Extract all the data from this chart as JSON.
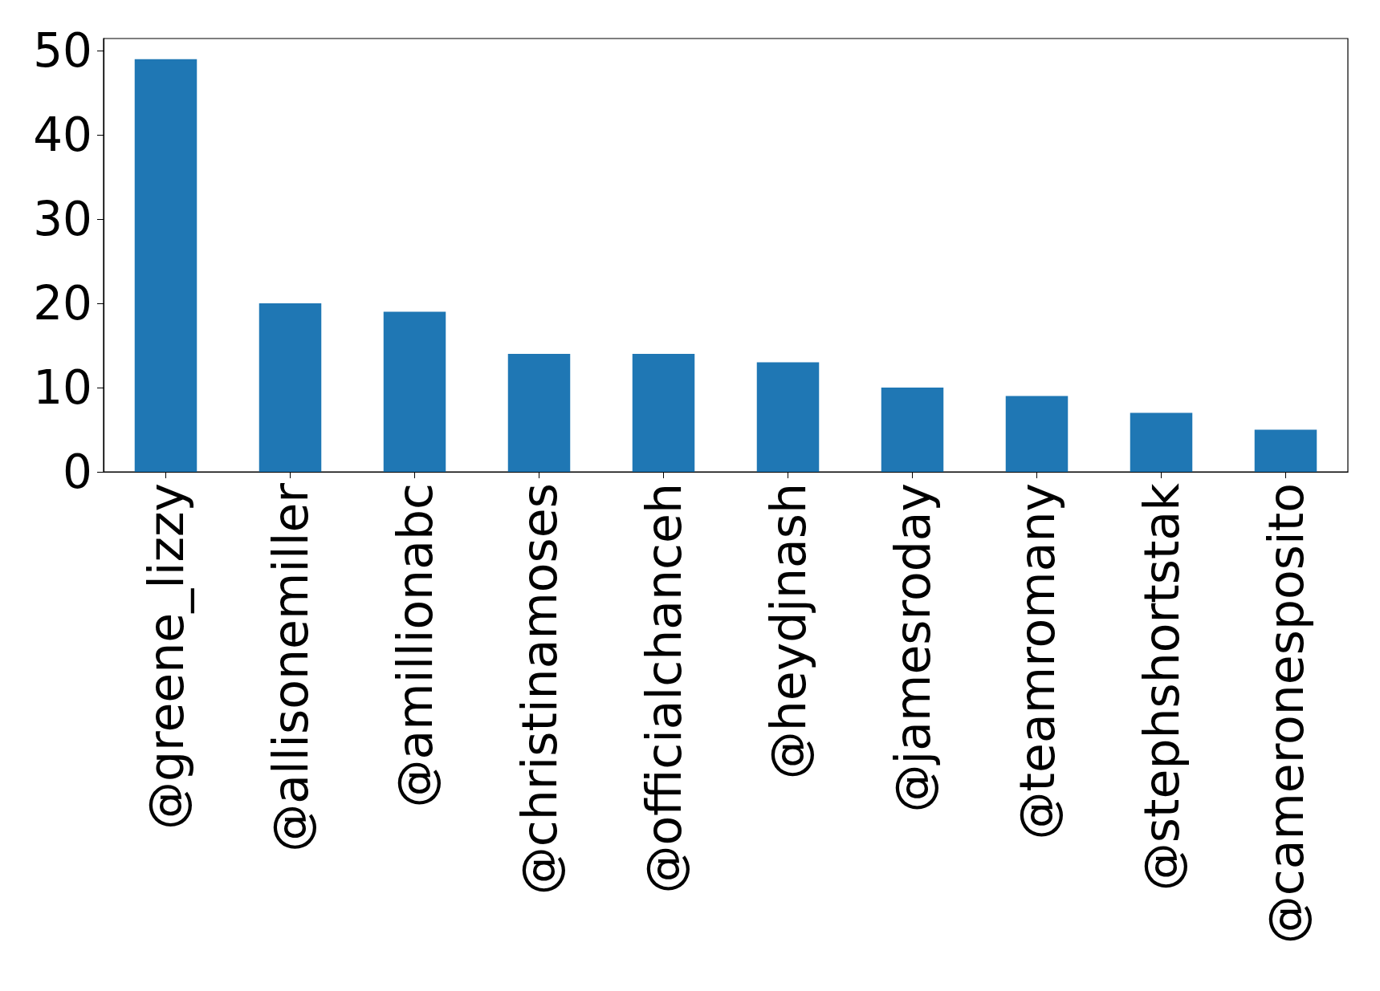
{
  "chart_data": {
    "type": "bar",
    "categories": [
      "@greene_lizzy",
      "@allisonemiller",
      "@amillionabc",
      "@christinamoses",
      "@officialchanceh",
      "@heydjnash",
      "@jamesroday",
      "@teamromany",
      "@stephshortstak",
      "@cameronesposito"
    ],
    "values": [
      49,
      20,
      19,
      14,
      14,
      13,
      10,
      9,
      7,
      5
    ],
    "color": "#1f77b4",
    "ylim": [
      0,
      51.45
    ],
    "yticks": [
      0,
      10,
      20,
      30,
      40,
      50
    ],
    "grid": false
  }
}
